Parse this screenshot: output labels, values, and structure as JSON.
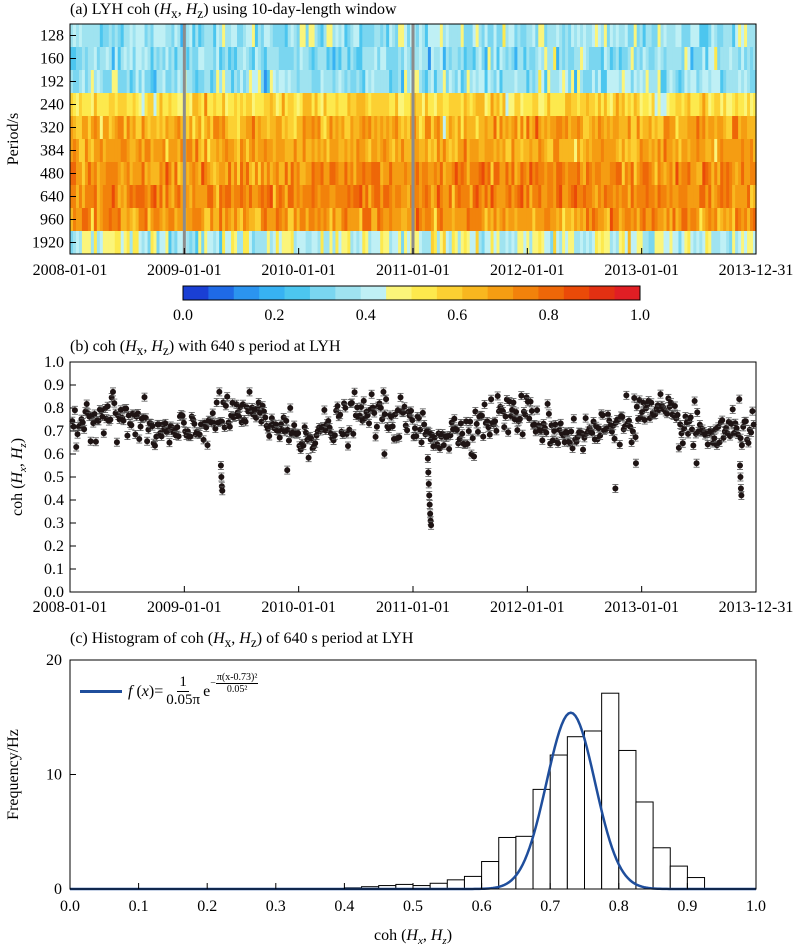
{
  "chart_data": [
    {
      "id": "a",
      "type": "heatmap",
      "title": "(a) LYH  coh (Hx, Hz) using 10-day-length window",
      "title_parts": {
        "prefix": "(a) LYH  coh (",
        "v1": "H",
        "s1": "x",
        "mid": ", ",
        "v2": "H",
        "s2": "z",
        "suffix": ") using 10-day-length window"
      },
      "ylabel": "Period/s",
      "periods": [
        "128",
        "160",
        "192",
        "240",
        "320",
        "384",
        "480",
        "640",
        "960",
        "1920"
      ],
      "row_mean": [
        0.36,
        0.34,
        0.36,
        0.55,
        0.66,
        0.67,
        0.72,
        0.74,
        0.7,
        0.47
      ],
      "x_ticks": [
        "2008-01-01",
        "2009-01-01",
        "2010-01-01",
        "2011-01-01",
        "2012-01-01",
        "2013-01-01",
        "2013-12-31"
      ],
      "gaps": [
        "2009-01-01",
        "2011-01-01"
      ],
      "colorbar": {
        "min": 0.0,
        "max": 1.0,
        "ticks": [
          "0.0",
          "0.2",
          "0.4",
          "0.6",
          "0.8",
          "1.0"
        ],
        "colors": [
          "#1a3fd4",
          "#1f6ae6",
          "#2b94ef",
          "#37b2f3",
          "#4cc6ef",
          "#7ad6f0",
          "#9fe3f0",
          "#bff0f5",
          "#fbf57a",
          "#fde94d",
          "#fcd032",
          "#f8b71f",
          "#f59d12",
          "#f2820b",
          "#ee6708",
          "#ea4a08",
          "#e23012",
          "#e01e24"
        ]
      }
    },
    {
      "id": "b",
      "type": "scatter",
      "title": "(b) coh (Hx, Hz) with 640 s period at LYH",
      "title_parts": {
        "prefix": "(b) coh (",
        "v1": "H",
        "s1": "x",
        "mid": ", ",
        "v2": "H",
        "s2": "z",
        "suffix": ") with 640 s period at LYH"
      },
      "ylabel": "coh (Hx, Hz)",
      "ylabel_parts": {
        "prefix": "coh (",
        "v1": "H",
        "s1": "x",
        "mid": ", ",
        "v2": "H",
        "s2": "z",
        "suffix": ")"
      },
      "ylim": [
        0.0,
        1.0
      ],
      "y_ticks": [
        "0.0",
        "0.1",
        "0.2",
        "0.3",
        "0.4",
        "0.5",
        "0.6",
        "0.7",
        "0.8",
        "0.9",
        "1.0"
      ],
      "x_ticks": [
        "2008-01-01",
        "2009-01-01",
        "2010-01-01",
        "2011-01-01",
        "2012-01-01",
        "2013-01-01",
        "2013-12-31"
      ],
      "series_mean": 0.73,
      "dips": [
        {
          "t": 1.32,
          "values": [
            0.55,
            0.5,
            0.46,
            0.44
          ]
        },
        {
          "t": 3.13,
          "values": [
            0.58,
            0.52,
            0.47,
            0.42,
            0.38,
            0.34,
            0.31,
            0.29
          ]
        },
        {
          "t": 4.77,
          "values": [
            0.45
          ]
        },
        {
          "t": 5.86,
          "values": [
            0.55,
            0.5,
            0.45,
            0.42
          ]
        },
        {
          "t": 1.9,
          "values": [
            0.53
          ]
        },
        {
          "t": 2.75,
          "values": [
            0.6
          ]
        },
        {
          "t": 4.95,
          "values": [
            0.56
          ]
        },
        {
          "t": 5.48,
          "values": [
            0.56
          ]
        }
      ]
    },
    {
      "id": "c",
      "type": "bar",
      "title": "(c) Histogram of coh (Hx, Hz) of 640 s period at LYH",
      "title_parts": {
        "prefix": "(c) Histogram of coh (",
        "v1": "H",
        "s1": "x",
        "mid": ", ",
        "v2": "H",
        "s2": "z",
        "suffix": ") of 640 s period at LYH"
      },
      "xlabel": "coh (Hx, Hz)",
      "xlabel_parts": {
        "prefix": "coh (",
        "v1": "H",
        "s1": "x",
        "mid": ", ",
        "v2": "H",
        "s2": "z",
        "suffix": ")"
      },
      "ylabel": "Frequency/Hz",
      "xlim": [
        0.0,
        1.0
      ],
      "ylim": [
        0,
        20
      ],
      "x_ticks": [
        "0.0",
        "0.1",
        "0.2",
        "0.3",
        "0.4",
        "0.5",
        "0.6",
        "0.7",
        "0.8",
        "0.9",
        "1.0"
      ],
      "y_ticks": [
        "0",
        "10",
        "20"
      ],
      "bin_width": 0.025,
      "bin_start": 0.4,
      "counts": [
        0.1,
        0.2,
        0.3,
        0.4,
        0.3,
        0.5,
        0.8,
        1.1,
        2.4,
        4.5,
        4.6,
        8.7,
        11.7,
        13.3,
        13.8,
        17.1,
        12.1,
        7.6,
        3.6,
        2.0,
        1.0
      ],
      "fit": {
        "legend_f": "f",
        "legend_x": "x",
        "legend_numerator": "1",
        "legend_denominator": "0.05π",
        "legend_base": "e",
        "legend_exp_numerator": "π(x-0.73)²",
        "legend_exp_denominator": "0.05²",
        "mu": 0.73,
        "sigma": 0.05,
        "color": "#1f4e9c"
      }
    }
  ]
}
